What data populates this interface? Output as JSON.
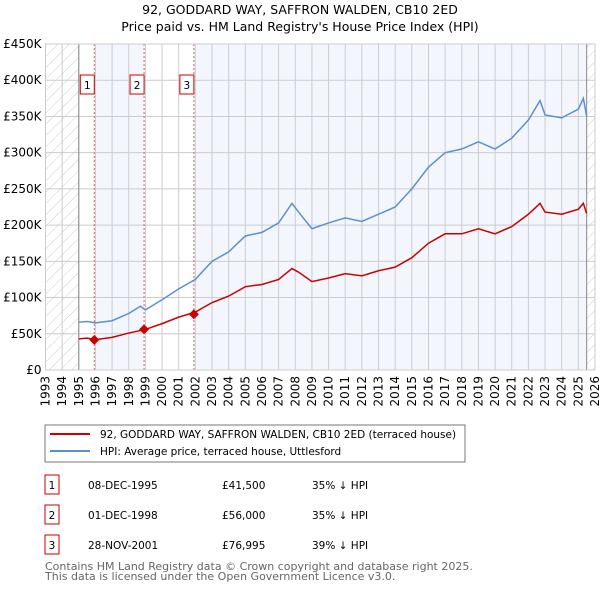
{
  "chart_data": {
    "type": "line",
    "title": "92, GODDARD WAY, SAFFRON WALDEN, CB10 2ED",
    "subtitle": "Price paid vs. HM Land Registry's House Price Index (HPI)",
    "ylim": [
      0,
      450000
    ],
    "xlim": [
      1993,
      2026
    ],
    "yticks": [
      {
        "v": 0,
        "label": "£0"
      },
      {
        "v": 50000,
        "label": "£50K"
      },
      {
        "v": 100000,
        "label": "£100K"
      },
      {
        "v": 150000,
        "label": "£150K"
      },
      {
        "v": 200000,
        "label": "£200K"
      },
      {
        "v": 250000,
        "label": "£250K"
      },
      {
        "v": 300000,
        "label": "£300K"
      },
      {
        "v": 350000,
        "label": "£350K"
      },
      {
        "v": 400000,
        "label": "£400K"
      },
      {
        "v": 450000,
        "label": "£450K"
      }
    ],
    "xticks": [
      "1993",
      "1994",
      "1995",
      "1996",
      "1997",
      "1998",
      "1999",
      "2000",
      "2001",
      "2002",
      "2003",
      "2004",
      "2005",
      "2006",
      "2007",
      "2008",
      "2009",
      "2010",
      "2011",
      "2012",
      "2013",
      "2014",
      "2015",
      "2016",
      "2017",
      "2018",
      "2019",
      "2020",
      "2021",
      "2022",
      "2023",
      "2024",
      "2025",
      "2026"
    ],
    "data_range": [
      1995,
      2025.5
    ],
    "series": [
      {
        "name": "92, GODDARD WAY, SAFFRON WALDEN, CB10 2ED (terraced house)",
        "color": "#cc0000",
        "points": [
          [
            1995,
            43000
          ],
          [
            1995.5,
            44000
          ],
          [
            1996,
            42000
          ],
          [
            1997,
            45000
          ],
          [
            1998,
            51000
          ],
          [
            1999,
            56000
          ],
          [
            2000,
            64000
          ],
          [
            2001,
            73000
          ],
          [
            2002,
            80000
          ],
          [
            2003,
            93000
          ],
          [
            2004,
            102000
          ],
          [
            2005,
            115000
          ],
          [
            2006,
            118000
          ],
          [
            2007,
            125000
          ],
          [
            2007.8,
            140000
          ],
          [
            2008.2,
            135000
          ],
          [
            2009,
            122000
          ],
          [
            2010,
            127000
          ],
          [
            2011,
            133000
          ],
          [
            2012,
            130000
          ],
          [
            2013,
            137000
          ],
          [
            2014,
            142000
          ],
          [
            2015,
            155000
          ],
          [
            2016,
            175000
          ],
          [
            2017,
            188000
          ],
          [
            2018,
            188000
          ],
          [
            2019,
            195000
          ],
          [
            2020,
            188000
          ],
          [
            2021,
            198000
          ],
          [
            2022,
            215000
          ],
          [
            2022.7,
            230000
          ],
          [
            2023,
            218000
          ],
          [
            2024,
            215000
          ],
          [
            2025,
            222000
          ],
          [
            2025.3,
            230000
          ],
          [
            2025.5,
            216000
          ]
        ]
      },
      {
        "name": "HPI: Average price, terraced house, Uttlesford",
        "color": "#5b8fd0",
        "points": [
          [
            1995,
            66000
          ],
          [
            1995.5,
            67000
          ],
          [
            1996,
            65000
          ],
          [
            1997,
            68000
          ],
          [
            1998,
            78000
          ],
          [
            1998.7,
            88000
          ],
          [
            1999,
            83000
          ],
          [
            2000,
            97000
          ],
          [
            2001,
            112000
          ],
          [
            2002,
            125000
          ],
          [
            2003,
            150000
          ],
          [
            2004,
            163000
          ],
          [
            2005,
            185000
          ],
          [
            2006,
            190000
          ],
          [
            2007,
            203000
          ],
          [
            2007.8,
            230000
          ],
          [
            2008.2,
            218000
          ],
          [
            2009,
            195000
          ],
          [
            2010,
            203000
          ],
          [
            2011,
            210000
          ],
          [
            2012,
            205000
          ],
          [
            2013,
            215000
          ],
          [
            2014,
            225000
          ],
          [
            2015,
            250000
          ],
          [
            2016,
            280000
          ],
          [
            2017,
            300000
          ],
          [
            2018,
            305000
          ],
          [
            2019,
            315000
          ],
          [
            2020,
            305000
          ],
          [
            2021,
            320000
          ],
          [
            2022,
            345000
          ],
          [
            2022.7,
            372000
          ],
          [
            2023,
            352000
          ],
          [
            2024,
            348000
          ],
          [
            2025,
            360000
          ],
          [
            2025.3,
            375000
          ],
          [
            2025.5,
            350000
          ]
        ]
      }
    ],
    "sales": [
      {
        "label": "1",
        "x": 1995.93,
        "price": 41500,
        "date": "08-DEC-1995",
        "price_text": "£41,500",
        "hpi": "35% ↓ HPI"
      },
      {
        "label": "2",
        "x": 1998.92,
        "price": 56000,
        "date": "01-DEC-1998",
        "price_text": "£56,000",
        "hpi": "35% ↓ HPI"
      },
      {
        "label": "3",
        "x": 2001.91,
        "price": 76995,
        "date": "28-NOV-2001",
        "price_text": "£76,995",
        "hpi": "39% ↓ HPI"
      }
    ]
  },
  "footer": {
    "line1": "Contains HM Land Registry data © Crown copyright and database right 2025.",
    "line2": "This data is licensed under the Open Government Licence v3.0."
  }
}
